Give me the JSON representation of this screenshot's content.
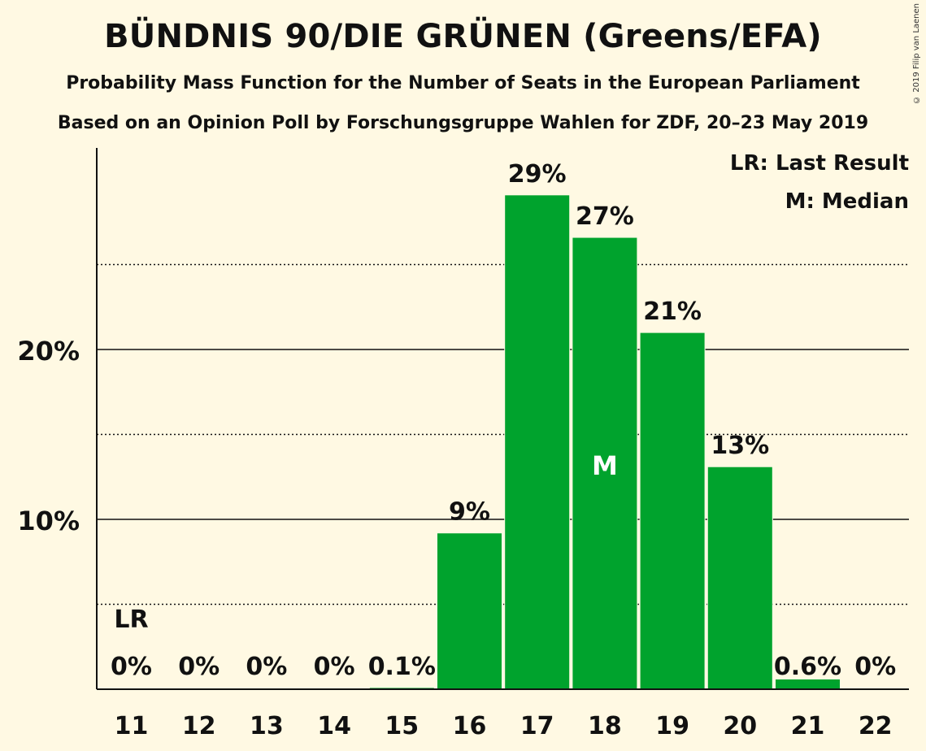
{
  "chart_data": {
    "type": "bar",
    "title": "BÜNDNIS 90/DIE GRÜNEN (Greens/EFA)",
    "subtitle": "Probability Mass Function for the Number of Seats in the European Parliament",
    "subtitle2": "Based on an Opinion Poll by Forschungsgruppe Wahlen for ZDF, 20–23 May 2019",
    "copyright": "© 2019 Filip van Laenen",
    "categories": [
      "11",
      "12",
      "13",
      "14",
      "15",
      "16",
      "17",
      "18",
      "19",
      "20",
      "21",
      "22"
    ],
    "values": [
      0,
      0,
      0,
      0,
      0.1,
      9.2,
      29.1,
      26.6,
      21.0,
      13.1,
      0.6,
      0
    ],
    "value_labels": [
      "0%",
      "0%",
      "0%",
      "0%",
      "0.1%",
      "9%",
      "29%",
      "27%",
      "21%",
      "13%",
      "0.6%",
      "0%"
    ],
    "ylim": [
      0,
      32
    ],
    "yticks": [
      {
        "value": 10,
        "label": "10%"
      },
      {
        "value": 20,
        "label": "20%"
      }
    ],
    "minor_gridlines": [
      5,
      15,
      25
    ],
    "last_result": {
      "category": "11",
      "label": "LR"
    },
    "median": {
      "category": "18",
      "label": "M"
    },
    "legend": [
      "LR: Last Result",
      "M: Median"
    ],
    "legend_position": "top-right",
    "bar_color": "#00A32D"
  }
}
